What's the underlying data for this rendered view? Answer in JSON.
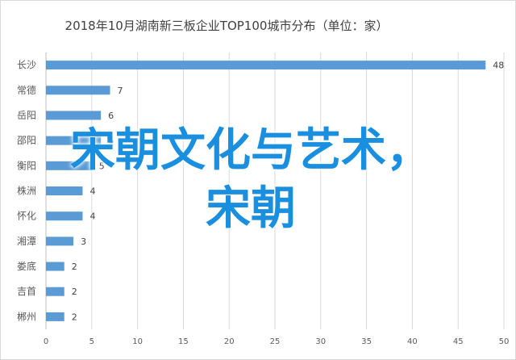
{
  "chart_data": {
    "type": "bar",
    "orientation": "horizontal",
    "title": "2018年10月湖南新三板企业TOP100城市分布（单位：家）",
    "categories": [
      "长沙",
      "常德",
      "岳阳",
      "邵阳",
      "衡阳",
      "株洲",
      "怀化",
      "湘潭",
      "娄底",
      "吉首",
      "郴州"
    ],
    "values": [
      48,
      7,
      6,
      6,
      5,
      4,
      4,
      3,
      2,
      2,
      2
    ],
    "xlim": [
      0,
      50
    ],
    "xticks": [
      0,
      5,
      10,
      15,
      20,
      25,
      30,
      35,
      40,
      45,
      50
    ],
    "grid": "vertical",
    "bar_color": "#5b9bd5",
    "data_labels": true
  },
  "overlay": {
    "text": "宋朝文化与艺术，\n宋朝",
    "color": "#1a8fe0"
  }
}
